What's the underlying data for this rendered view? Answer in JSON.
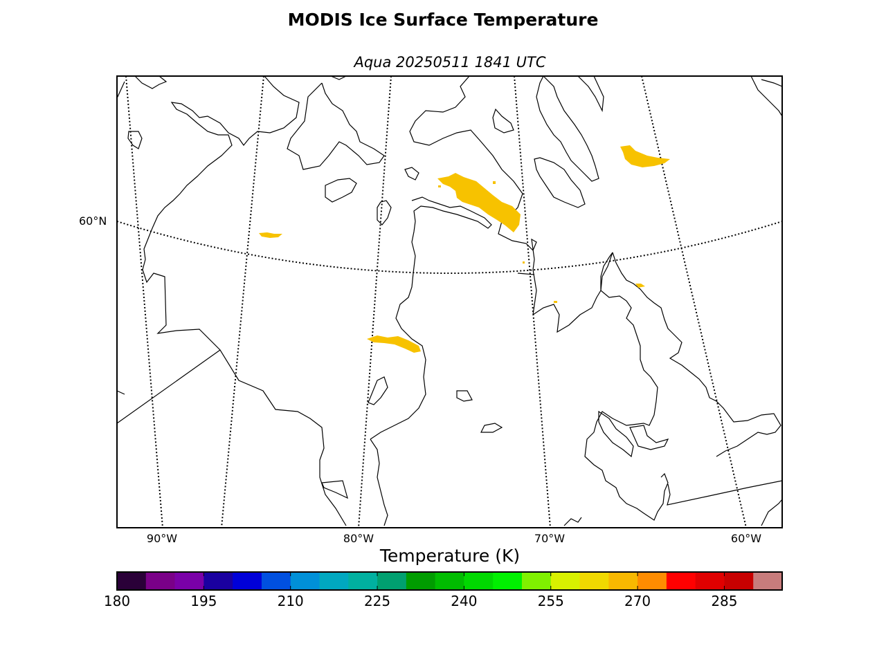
{
  "title": "MODIS Ice Surface Temperature",
  "subtitle": "Aqua 20250511 1841 UTC",
  "map": {
    "latitude_labels": [
      "60°N"
    ],
    "longitude_labels": [
      "90°W",
      "80°W",
      "70°W",
      "60°W"
    ],
    "ice_temperature_color": "#f7c200",
    "coastline_color": "#000000"
  },
  "colorbar": {
    "label": "Temperature (K)",
    "min": 180,
    "max": 295,
    "tick_labels": [
      "180",
      "195",
      "210",
      "225",
      "240",
      "255",
      "270",
      "285"
    ],
    "colors": [
      "#2a0038",
      "#7a0088",
      "#7a00a8",
      "#1a00a0",
      "#0000d8",
      "#0050e0",
      "#0090d8",
      "#00a8c0",
      "#00b0a0",
      "#00a070",
      "#009c00",
      "#00bc00",
      "#00d800",
      "#00f000",
      "#80f000",
      "#d8f000",
      "#f0d800",
      "#f8b800",
      "#ff8c00",
      "#ff0000",
      "#e00000",
      "#c80000",
      "#c87c7c"
    ]
  }
}
